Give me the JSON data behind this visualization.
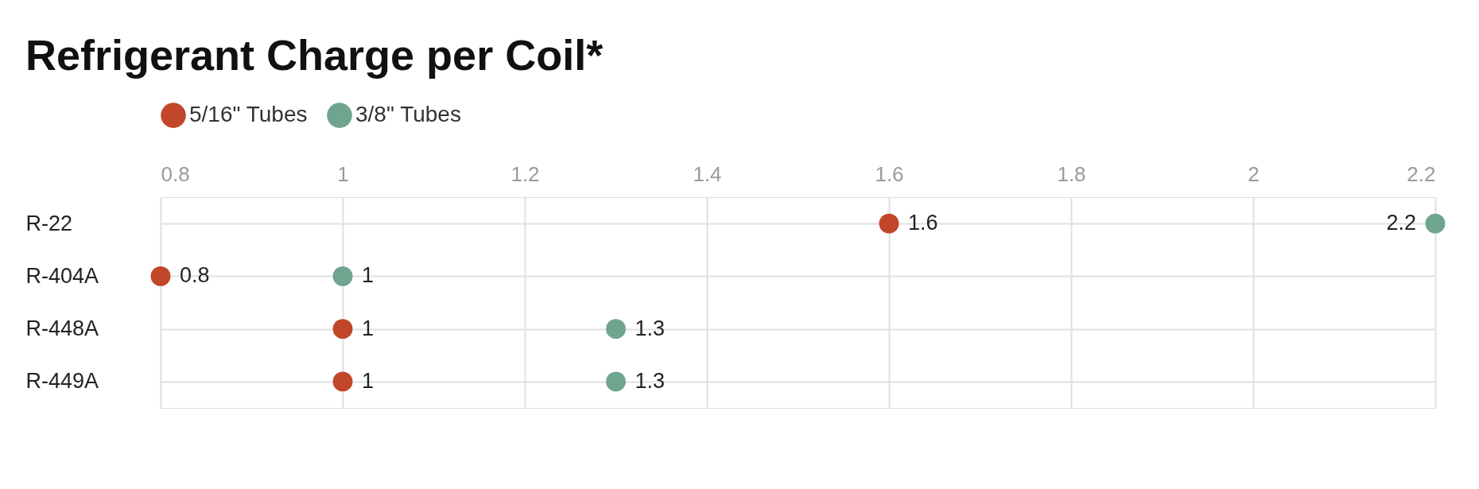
{
  "chart_data": {
    "type": "scatter",
    "title": "Refrigerant Charge per Coil*",
    "orientation": "horizontal",
    "categories": [
      "R-22",
      "R-404A",
      "R-448A",
      "R-449A"
    ],
    "series": [
      {
        "name": "5/16\" Tubes",
        "color": "#c1462a",
        "values": [
          1.6,
          0.8,
          1,
          1
        ]
      },
      {
        "name": "3/8\" Tubes",
        "color": "#6fa58f",
        "values": [
          2.2,
          1,
          1.3,
          1.3
        ]
      }
    ],
    "xlim": [
      0.8,
      2.2
    ],
    "xticks": [
      0.8,
      1,
      1.2,
      1.4,
      1.6,
      1.8,
      2,
      2.2
    ],
    "grid": true,
    "legend": "top left",
    "marker": "circle",
    "data_labels": true
  }
}
